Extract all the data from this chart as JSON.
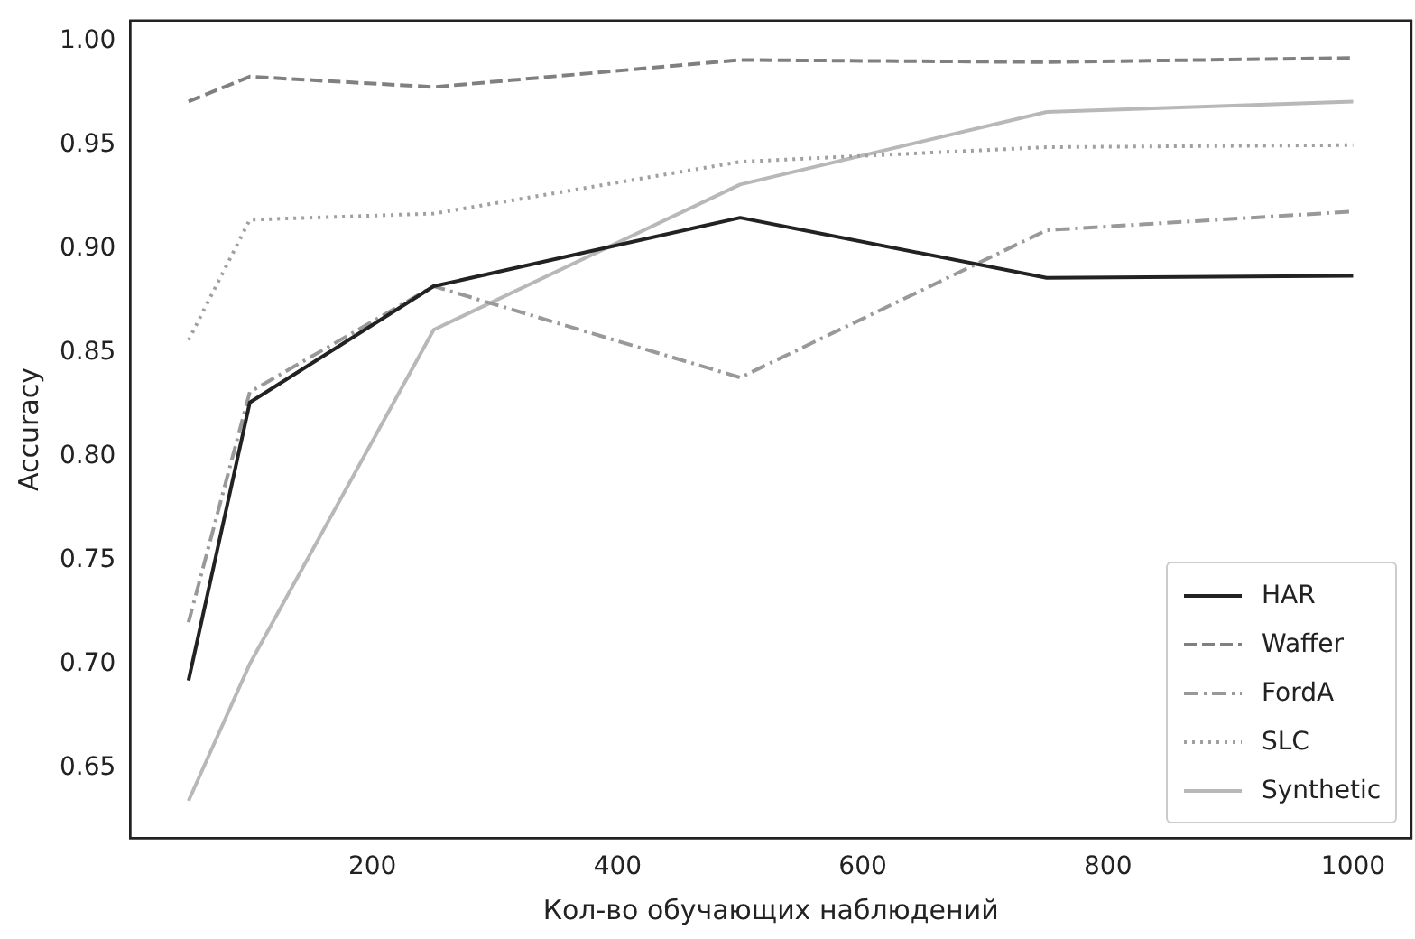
{
  "chart_data": {
    "type": "line",
    "xlabel": "Кол-во обучающих наблюдений",
    "ylabel": "Accuracy",
    "x": [
      50,
      100,
      250,
      500,
      750,
      1000
    ],
    "series": [
      {
        "name": "HAR",
        "color": "#222222",
        "line_style": "solid",
        "values": [
          0.692,
          0.826,
          0.882,
          0.915,
          0.886,
          0.887
        ]
      },
      {
        "name": "Waffer",
        "color": "#808080",
        "line_style": "dashed",
        "values": [
          0.971,
          0.983,
          0.978,
          0.991,
          0.99,
          0.992
        ]
      },
      {
        "name": "FordA",
        "color": "#999999",
        "line_style": "dashdot",
        "values": [
          0.72,
          0.831,
          0.882,
          0.838,
          0.909,
          0.918
        ]
      },
      {
        "name": "SLC",
        "color": "#a0a0a0",
        "line_style": "dotted",
        "values": [
          0.856,
          0.914,
          0.917,
          0.942,
          0.949,
          0.95
        ]
      },
      {
        "name": "Synthetic",
        "color": "#b8b8b8",
        "line_style": "solid",
        "values": [
          0.634,
          0.7,
          0.861,
          0.931,
          0.966,
          0.971
        ]
      }
    ],
    "xlim": [
      2.5,
      1047.5
    ],
    "xticks": [
      200,
      400,
      600,
      800,
      1000
    ],
    "ylim": [
      0.616,
      1.01
    ],
    "yticks": [
      0.65,
      {
        "value": 0.7,
        "label": "0.70"
      },
      0.75,
      {
        "value": 0.8,
        "label": "0.80"
      },
      0.85,
      {
        "value": 0.9,
        "label": "0.90"
      },
      0.95,
      {
        "value": 1,
        "label": "1.00"
      }
    ],
    "grid": false,
    "legend": "bottom right",
    "marker": "none"
  }
}
